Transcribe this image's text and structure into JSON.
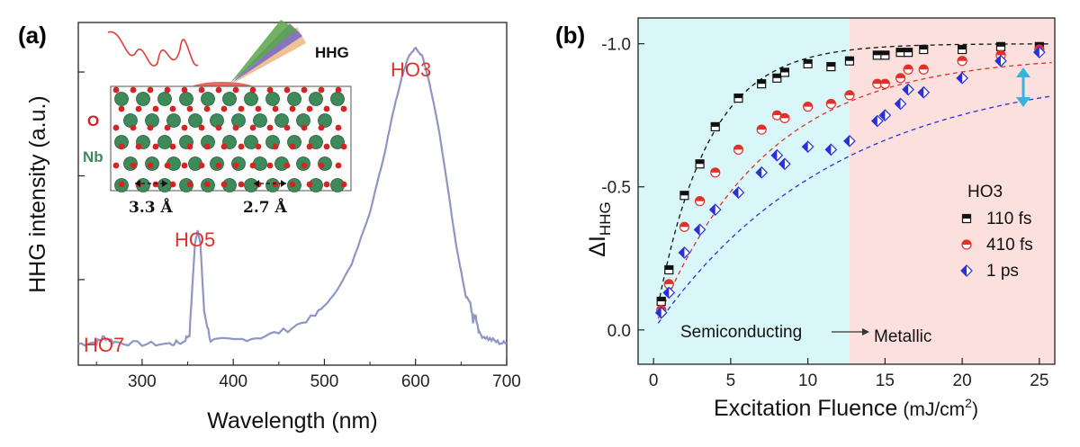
{
  "chart_data": [
    {
      "panel": "(a)",
      "type": "line",
      "xlabel": "Wavelength (nm)",
      "ylabel": "HHG intensity (a.u.)",
      "xlim": [
        230,
        700
      ],
      "xticks": [
        300,
        400,
        500,
        600,
        700
      ],
      "ylog": true,
      "yticks_labeled": false,
      "series": [
        {
          "color": "#8d96c4",
          "x": [
            230,
            250,
            258,
            270,
            300,
            330,
            345,
            352,
            358,
            361,
            364,
            368,
            375,
            400,
            430,
            460,
            490,
            510,
            530,
            550,
            565,
            575,
            585,
            592,
            600,
            608,
            615,
            625,
            635,
            645,
            655,
            660,
            663,
            666,
            670,
            680,
            690,
            700
          ],
          "y": [
            0.024,
            0.025,
            0.028,
            0.025,
            0.024,
            0.024,
            0.025,
            0.03,
            0.22,
            0.3,
            0.22,
            0.05,
            0.026,
            0.026,
            0.028,
            0.033,
            0.045,
            0.07,
            0.14,
            0.45,
            1.5,
            4.0,
            9.0,
            14.0,
            17.0,
            14.0,
            8.0,
            3.0,
            0.8,
            0.2,
            0.07,
            0.06,
            0.04,
            0.045,
            0.03,
            0.027,
            0.025,
            0.024
          ]
        }
      ],
      "annotations": [
        {
          "text": "HO7",
          "x": 258,
          "color": "#e0302a"
        },
        {
          "text": "HO5",
          "x": 361,
          "color": "#e0302a"
        },
        {
          "text": "HO3",
          "x": 600,
          "color": "#e0302a"
        }
      ],
      "inset": {
        "label": "HHG",
        "atoms": [
          {
            "text": "O",
            "color": "#cc2222"
          },
          {
            "text": "Nb",
            "color": "#3e8a5a"
          }
        ],
        "distances": [
          "3.3 Å",
          "2.7 Å"
        ]
      }
    },
    {
      "panel": "(b)",
      "type": "scatter",
      "xlabel_main": "Excitation Fluence",
      "xlabel_unit": "(mJ/cm",
      "xlabel_sup": "2",
      "xlabel_close": ")",
      "ylabel": "ΔI",
      "ylabel_sub": "HHG",
      "xlim": [
        -1,
        26
      ],
      "ylim": [
        0.12,
        -1.09
      ],
      "xticks": [
        0,
        5,
        10,
        15,
        20,
        25
      ],
      "yticks": [
        0.0,
        -0.5,
        -1.0
      ],
      "ytick_labels": [
        "0.0",
        "-0.5",
        "-1.0"
      ],
      "regions": [
        {
          "name": "Semiconducting",
          "x_from": -1,
          "x_to": 12.7,
          "color": "#d9f7f8"
        },
        {
          "name": "Metallic",
          "x_from": 12.7,
          "x_to": 26,
          "color": "#fce0de"
        }
      ],
      "legend_title": "HO3",
      "series": [
        {
          "name": "110 fs",
          "marker": "square-half",
          "color": "#111111",
          "x": [
            0.5,
            1.0,
            2.0,
            3.0,
            4.0,
            5.5,
            7.0,
            8.0,
            8.5,
            10.0,
            11.5,
            12.7,
            14.5,
            15.0,
            16.0,
            16.5,
            17.5,
            20.0,
            22.5,
            25.0
          ],
          "y": [
            -0.1,
            -0.21,
            -0.47,
            -0.58,
            -0.71,
            -0.81,
            -0.86,
            -0.88,
            -0.9,
            -0.93,
            -0.92,
            -0.94,
            -0.96,
            -0.96,
            -0.97,
            -0.97,
            -0.98,
            -0.98,
            -0.99,
            -0.99
          ],
          "fit_k": 0.3,
          "fit_a": 1.0
        },
        {
          "name": "410 fs",
          "marker": "circle-half",
          "color": "#e0302a",
          "x": [
            0.5,
            1.0,
            2.0,
            3.0,
            4.0,
            5.5,
            7.0,
            8.0,
            8.5,
            10.0,
            11.5,
            12.7,
            14.5,
            15.0,
            16.0,
            16.5,
            17.5,
            20.0,
            22.5,
            25.0
          ],
          "y": [
            -0.07,
            -0.16,
            -0.36,
            -0.45,
            -0.55,
            -0.63,
            -0.7,
            -0.75,
            -0.74,
            -0.78,
            -0.79,
            -0.82,
            -0.86,
            -0.86,
            -0.88,
            -0.91,
            -0.91,
            -0.94,
            -0.96,
            -0.98
          ],
          "fit_k": 0.14,
          "fit_a": 0.96
        },
        {
          "name": "1 ps",
          "marker": "diamond-half",
          "color": "#2a2fd8",
          "x": [
            0.5,
            1.0,
            2.0,
            3.0,
            4.0,
            5.5,
            7.0,
            8.0,
            8.5,
            10.0,
            11.5,
            12.7,
            14.5,
            15.0,
            16.0,
            16.5,
            17.5,
            20.0,
            22.5,
            25.0
          ],
          "y": [
            -0.06,
            -0.13,
            -0.27,
            -0.35,
            -0.42,
            -0.48,
            -0.55,
            -0.61,
            -0.58,
            -0.64,
            -0.63,
            -0.66,
            -0.73,
            -0.75,
            -0.79,
            -0.84,
            -0.83,
            -0.88,
            -0.94,
            -0.97
          ],
          "fit_k": 0.085,
          "fit_a": 0.92
        }
      ]
    }
  ]
}
